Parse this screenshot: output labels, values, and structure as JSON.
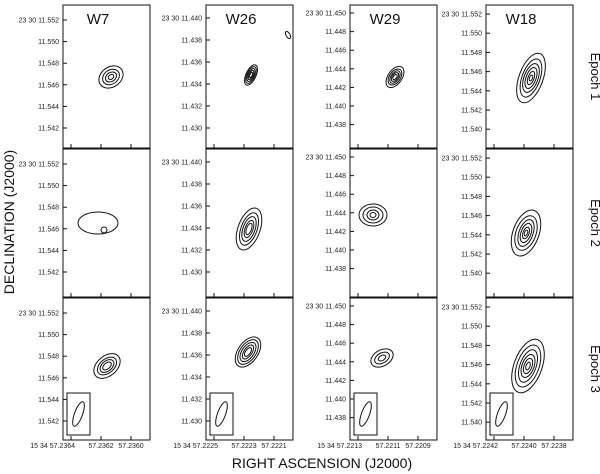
{
  "columns": [
    {
      "title": "W7",
      "yticks": [
        "23 30 11.552",
        "11.550",
        "11.548",
        "11.546",
        "11.544",
        "11.542"
      ],
      "xticks": [
        "15 34 57.2364",
        "57.2362",
        "57.2360"
      ]
    },
    {
      "title": "W26",
      "yticks": [
        "23 30 11.440",
        "11.438",
        "11.436",
        "11.434",
        "11.432",
        "11.430"
      ],
      "xticks": [
        "15 34 57.2225",
        "57.2223",
        "57.2221"
      ]
    },
    {
      "title": "W29",
      "yticks": [
        "23 30 11.450",
        "11.448",
        "11.446",
        "11.444",
        "11.442",
        "11.440",
        "11.438"
      ],
      "xticks": [
        "15 34 57.2213",
        "57.2211",
        "57.2209"
      ]
    },
    {
      "title": "W18",
      "yticks": [
        "23 30 11.552",
        "11.550",
        "11.548",
        "11.546",
        "11.544",
        "11.542",
        "11.540"
      ],
      "xticks": [
        "15 34 57.2242",
        "57.2240",
        "57.2238"
      ]
    }
  ],
  "rows": [
    {
      "label": "Epoch 1"
    },
    {
      "label": "Epoch 2"
    },
    {
      "label": "Epoch 3"
    }
  ],
  "y_axis_label": "DECLINATION (J2000)",
  "x_axis_label": "RIGHT ASCENSION (J2000)"
}
